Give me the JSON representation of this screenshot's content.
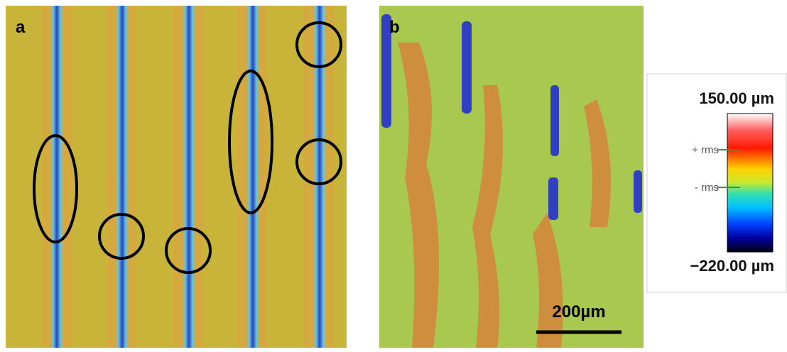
{
  "panels": [
    {
      "label": "a"
    },
    {
      "label": "b",
      "scale_bar": "200µm"
    }
  ],
  "colorbar": {
    "max_label": "150.00 µm",
    "plus_rms": "+ rms",
    "minus_rms": "- rms",
    "min_label": "−220.00 µm"
  }
}
